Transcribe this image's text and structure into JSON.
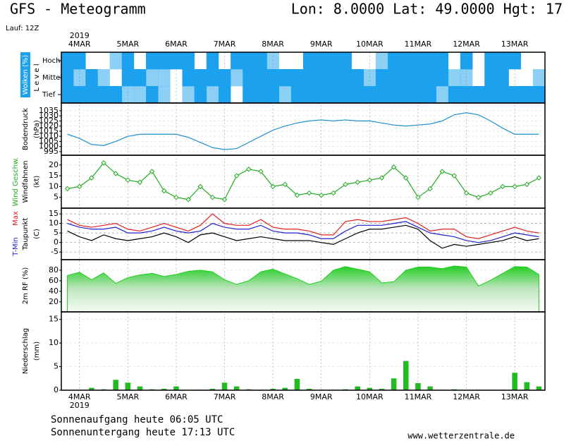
{
  "header": {
    "title": "GFS - Meteogramm",
    "location": "Lon: 8.0000 Lat: 49.0000 Hgt: 17",
    "run": "Lauf: 12Z"
  },
  "time_axis": {
    "year": "2019",
    "categories": [
      null,
      "4MAR",
      null,
      null,
      null,
      "5MAR",
      null,
      null,
      null,
      "6MAR",
      null,
      null,
      null,
      "7MAR",
      null,
      null,
      null,
      "8MAR",
      null,
      null,
      null,
      "9MAR",
      null,
      null,
      null,
      "10MAR",
      null,
      null,
      null,
      "11MAR",
      null,
      null,
      null,
      "12MAR",
      null,
      null,
      null,
      "13MAR",
      null,
      null
    ]
  },
  "chart_data": [
    {
      "type": "heatmap",
      "y_label": "Wolken (%)",
      "level_label": "L e v e l",
      "color": "#1ba1ee",
      "series": [
        {
          "name": "Hoch",
          "values": [
            100,
            100,
            0,
            0,
            50,
            100,
            0,
            100,
            100,
            100,
            100,
            0,
            100,
            0,
            100,
            100,
            100,
            50,
            0,
            0,
            100,
            100,
            100,
            100,
            0,
            0,
            50,
            100,
            100,
            100,
            100,
            100,
            0,
            100,
            0,
            100,
            100,
            100,
            0,
            0
          ]
        },
        {
          "name": "Mittel",
          "values": [
            100,
            50,
            100,
            50,
            0,
            100,
            100,
            50,
            50,
            0,
            100,
            100,
            100,
            100,
            50,
            100,
            100,
            100,
            100,
            100,
            100,
            100,
            100,
            100,
            100,
            50,
            100,
            100,
            100,
            100,
            100,
            100,
            50,
            50,
            0,
            100,
            100,
            0,
            0,
            50
          ]
        },
        {
          "name": "Tief",
          "values": [
            100,
            100,
            100,
            100,
            100,
            50,
            50,
            100,
            50,
            0,
            50,
            100,
            50,
            100,
            0,
            100,
            100,
            100,
            50,
            100,
            100,
            100,
            100,
            100,
            100,
            100,
            100,
            100,
            100,
            100,
            100,
            50,
            100,
            100,
            100,
            100,
            100,
            100,
            100,
            100
          ]
        }
      ]
    },
    {
      "type": "line",
      "y_label": "Bodendruck",
      "y_unit": "(hPa)",
      "ylim": [
        991.5,
        1042.5
      ],
      "yticks": [
        995,
        1000,
        1005,
        1010,
        1015,
        1020,
        1025,
        1030,
        1035
      ],
      "grid": false,
      "series": [
        {
          "color": "#2090d0",
          "values": [
            1012,
            1008,
            1002,
            1001,
            1005,
            1010,
            1012,
            1012,
            1012,
            1012,
            1009,
            1004,
            999,
            997,
            998,
            1004,
            1010,
            1016,
            1020,
            1023,
            1025,
            1026,
            1025,
            1026,
            1025,
            1025,
            1023,
            1021,
            1020,
            1021,
            1022,
            1025,
            1031,
            1033,
            1031,
            1025,
            1018,
            1012,
            1012,
            1012
          ]
        }
      ]
    },
    {
      "type": "line",
      "y_label": "Windfahnen",
      "y_unit": "(kt)",
      "ylim": [
        0,
        24.5
      ],
      "yticks": [
        5,
        10,
        15,
        20
      ],
      "grid": false,
      "markers": true,
      "series": [
        {
          "name": "Wind Geschw.",
          "color": "#22aa22",
          "values": [
            9,
            10,
            14,
            21,
            16,
            13,
            12,
            17,
            8,
            5,
            4,
            10,
            5,
            4,
            15,
            18,
            17,
            10,
            11,
            6,
            7,
            6,
            7,
            11,
            12,
            13,
            14,
            19,
            14,
            5,
            9,
            17,
            15,
            7,
            5,
            7,
            10,
            10,
            11,
            14
          ]
        }
      ]
    },
    {
      "type": "line",
      "y_unit": "(C)",
      "ylim": [
        -9,
        18
      ],
      "yticks": [
        -5,
        0,
        5,
        10,
        15
      ],
      "grid": true,
      "series": [
        {
          "name": "Max",
          "color": "#e02020",
          "values": [
            12,
            9,
            8,
            9,
            10,
            7,
            6,
            8,
            10,
            8,
            6,
            9,
            15,
            10,
            9,
            9,
            12,
            8,
            7,
            7,
            6,
            4,
            4,
            11,
            12,
            11,
            11,
            12,
            13,
            10,
            6,
            7,
            7,
            3,
            2,
            4,
            6,
            8,
            6,
            5
          ]
        },
        {
          "name": "T-Min",
          "color": "#2020d0",
          "values": [
            10,
            8,
            7,
            7,
            8,
            5,
            5,
            6,
            8,
            6,
            5,
            6,
            10,
            8,
            7,
            7,
            9,
            6,
            5,
            5,
            4,
            2,
            2,
            6,
            9,
            9,
            9,
            10,
            11,
            8,
            5,
            4,
            3,
            1,
            0,
            1,
            3,
            5,
            4,
            3
          ]
        },
        {
          "name": "Taupunkt",
          "color": "#000000",
          "values": [
            6,
            3,
            1,
            4,
            2,
            1,
            2,
            3,
            5,
            3,
            0,
            4,
            5,
            3,
            1,
            2,
            3,
            2,
            1,
            1,
            1,
            0,
            -1,
            2,
            5,
            7,
            7,
            8,
            9,
            7,
            1,
            -3,
            -1,
            -2,
            -1,
            0,
            1,
            3,
            1,
            2
          ]
        }
      ]
    },
    {
      "type": "area",
      "y_label": "2m RF (%)",
      "ylim": [
        1,
        100
      ],
      "yticks": [
        20,
        40,
        60,
        80
      ],
      "grid": false,
      "color": "#22cc22",
      "values": [
        70,
        76,
        62,
        75,
        55,
        66,
        71,
        74,
        68,
        72,
        78,
        80,
        77,
        62,
        53,
        60,
        77,
        82,
        73,
        64,
        53,
        59,
        80,
        87,
        82,
        77,
        56,
        58,
        80,
        86,
        86,
        83,
        88,
        86,
        50,
        61,
        74,
        87,
        86,
        72
      ]
    },
    {
      "type": "bar",
      "y_label": "Niederschlag",
      "y_unit": "(mm)",
      "ylim": [
        0,
        16.6
      ],
      "yticks": [
        0,
        5,
        10,
        15
      ],
      "grid": false,
      "color": "#22bb22",
      "values": [
        0,
        0,
        0.5,
        0.2,
        2.2,
        1.6,
        0.8,
        0.2,
        0.3,
        0.8,
        0,
        0.1,
        0.3,
        1.6,
        0.8,
        0.2,
        0.1,
        0.3,
        0.5,
        2.4,
        0.3,
        0.1,
        0.1,
        0.2,
        0.8,
        0.5,
        0.3,
        2.5,
        6.2,
        1.5,
        0.8,
        0.1,
        0.2,
        0,
        0.1,
        0,
        0.1,
        3.7,
        1.7,
        0.8
      ]
    }
  ],
  "footer": {
    "sunrise": "Sonnenaufgang heute 06:05 UTC",
    "sunset": "Sonnenuntergang heute 17:13 UTC",
    "source": "www.wetterzentrale.de"
  }
}
